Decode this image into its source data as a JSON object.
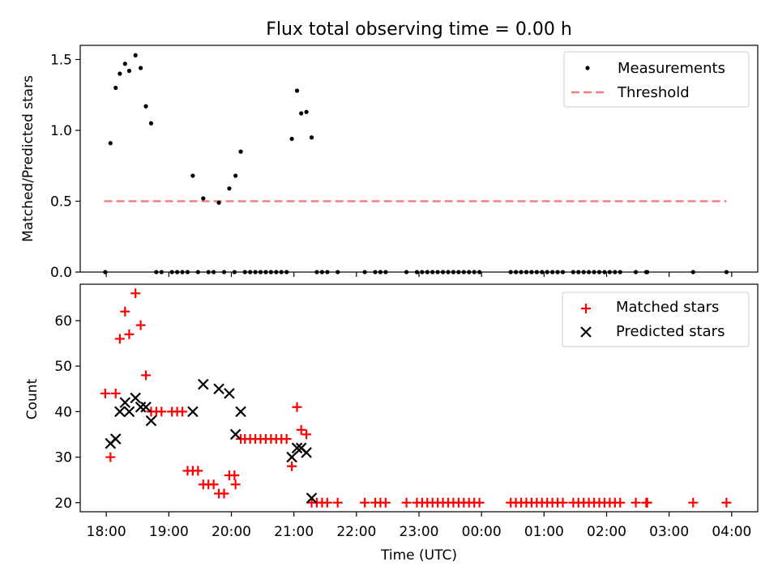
{
  "chart_data": [
    {
      "type": "scatter",
      "title": "Flux total observing time = 0.00 h",
      "xlabel": "",
      "ylabel": "Matched/Predicted stars",
      "x_unit": "time of day UTC (hours after midnight; values above 24 fall on the next day)",
      "xlim": [
        "17:35",
        "04:25"
      ],
      "ylim": [
        0,
        1.6
      ],
      "yticks": [
        "0.0",
        "0.5",
        "1.0",
        "1.5"
      ],
      "legend_position": "top-right",
      "legend": [
        "Measurements",
        "Threshold"
      ],
      "threshold": {
        "name": "Threshold",
        "y": 0.5,
        "x_range": [
          "17:58",
          "03:55"
        ],
        "color": "#f08080"
      },
      "series": [
        {
          "name": "Measurements",
          "color": "#000000",
          "points": [
            [
              "17:59",
              0.0
            ],
            [
              "18:04",
              0.91
            ],
            [
              "18:09",
              1.3
            ],
            [
              "18:13",
              1.4
            ],
            [
              "18:18",
              1.47
            ],
            [
              "18:22",
              1.42
            ],
            [
              "18:28",
              1.53
            ],
            [
              "18:33",
              1.44
            ],
            [
              "18:38",
              1.17
            ],
            [
              "18:43",
              1.05
            ],
            [
              "18:48",
              0.0
            ],
            [
              "18:53",
              0.0
            ],
            [
              "19:03",
              0.0
            ],
            [
              "19:08",
              0.0
            ],
            [
              "19:13",
              0.0
            ],
            [
              "19:18",
              0.0
            ],
            [
              "19:23",
              0.68
            ],
            [
              "19:28",
              0.0
            ],
            [
              "19:33",
              0.52
            ],
            [
              "19:38",
              0.0
            ],
            [
              "19:43",
              0.0
            ],
            [
              "19:48",
              0.49
            ],
            [
              "19:53",
              0.0
            ],
            [
              "19:58",
              0.59
            ],
            [
              "20:03",
              0.0
            ],
            [
              "20:04",
              0.68
            ],
            [
              "20:09",
              0.85
            ],
            [
              "20:13",
              0.0
            ],
            [
              "20:18",
              0.0
            ],
            [
              "20:23",
              0.0
            ],
            [
              "20:28",
              0.0
            ],
            [
              "20:33",
              0.0
            ],
            [
              "20:38",
              0.0
            ],
            [
              "20:43",
              0.0
            ],
            [
              "20:48",
              0.0
            ],
            [
              "20:53",
              0.0
            ],
            [
              "20:58",
              0.94
            ],
            [
              "21:03",
              1.28
            ],
            [
              "21:07",
              1.12
            ],
            [
              "21:12",
              1.13
            ],
            [
              "21:17",
              0.95
            ],
            [
              "21:22",
              0.0
            ],
            [
              "21:27",
              0.0
            ],
            [
              "21:32",
              0.0
            ],
            [
              "21:42",
              0.0
            ],
            [
              "22:08",
              0.0
            ],
            [
              "22:18",
              0.0
            ],
            [
              "22:23",
              0.0
            ],
            [
              "22:28",
              0.0
            ],
            [
              "22:48",
              0.0
            ],
            [
              "22:58",
              0.0
            ],
            [
              "23:03",
              0.0
            ],
            [
              "23:08",
              0.0
            ],
            [
              "23:13",
              0.0
            ],
            [
              "23:18",
              0.0
            ],
            [
              "23:23",
              0.0
            ],
            [
              "23:28",
              0.0
            ],
            [
              "23:33",
              0.0
            ],
            [
              "23:38",
              0.0
            ],
            [
              "23:43",
              0.0
            ],
            [
              "23:48",
              0.0
            ],
            [
              "23:53",
              0.0
            ],
            [
              "23:58",
              0.0
            ],
            [
              "24:28",
              0.0
            ],
            [
              "24:33",
              0.0
            ],
            [
              "24:38",
              0.0
            ],
            [
              "24:43",
              0.0
            ],
            [
              "24:48",
              0.0
            ],
            [
              "24:53",
              0.0
            ],
            [
              "24:58",
              0.0
            ],
            [
              "25:03",
              0.0
            ],
            [
              "25:08",
              0.0
            ],
            [
              "25:13",
              0.0
            ],
            [
              "25:18",
              0.0
            ],
            [
              "25:28",
              0.0
            ],
            [
              "25:33",
              0.0
            ],
            [
              "25:38",
              0.0
            ],
            [
              "25:43",
              0.0
            ],
            [
              "25:48",
              0.0
            ],
            [
              "25:53",
              0.0
            ],
            [
              "25:58",
              0.0
            ],
            [
              "26:03",
              0.0
            ],
            [
              "26:08",
              0.0
            ],
            [
              "26:13",
              0.0
            ],
            [
              "26:28",
              0.0
            ],
            [
              "26:38",
              0.0
            ],
            [
              "26:39",
              0.0
            ],
            [
              "27:23",
              0.0
            ],
            [
              "27:55",
              0.0
            ]
          ]
        }
      ]
    },
    {
      "type": "scatter",
      "title": "",
      "xlabel": "Time (UTC)",
      "ylabel": "Count",
      "x_unit": "time of day UTC (hours after midnight; values above 24 fall on the next day)",
      "xlim": [
        "17:35",
        "04:25"
      ],
      "ylim": [
        18,
        68
      ],
      "yticks": [
        "20",
        "30",
        "40",
        "50",
        "60"
      ],
      "xticks": [
        "18:00",
        "19:00",
        "20:00",
        "21:00",
        "22:00",
        "23:00",
        "00:00",
        "01:00",
        "02:00",
        "03:00",
        "04:00"
      ],
      "legend_position": "top-right",
      "legend": [
        "Matched stars",
        "Predicted stars"
      ],
      "series": [
        {
          "name": "Matched stars",
          "color": "#ff0000",
          "marker": "plus",
          "points": [
            [
              "17:59",
              44
            ],
            [
              "18:04",
              30
            ],
            [
              "18:09",
              44
            ],
            [
              "18:13",
              56
            ],
            [
              "18:18",
              62
            ],
            [
              "18:22",
              57
            ],
            [
              "18:28",
              66
            ],
            [
              "18:33",
              59
            ],
            [
              "18:38",
              48
            ],
            [
              "18:43",
              40
            ],
            [
              "18:48",
              40
            ],
            [
              "18:53",
              40
            ],
            [
              "19:03",
              40
            ],
            [
              "19:08",
              40
            ],
            [
              "19:13",
              40
            ],
            [
              "19:18",
              27
            ],
            [
              "19:23",
              27
            ],
            [
              "19:28",
              27
            ],
            [
              "19:33",
              24
            ],
            [
              "19:38",
              24
            ],
            [
              "19:43",
              24
            ],
            [
              "19:48",
              22
            ],
            [
              "19:53",
              22
            ],
            [
              "19:58",
              26
            ],
            [
              "20:03",
              26
            ],
            [
              "20:04",
              24
            ],
            [
              "20:09",
              34
            ],
            [
              "20:13",
              34
            ],
            [
              "20:18",
              34
            ],
            [
              "20:23",
              34
            ],
            [
              "20:28",
              34
            ],
            [
              "20:33",
              34
            ],
            [
              "20:38",
              34
            ],
            [
              "20:43",
              34
            ],
            [
              "20:48",
              34
            ],
            [
              "20:53",
              34
            ],
            [
              "20:58",
              28
            ],
            [
              "21:03",
              41
            ],
            [
              "21:07",
              36
            ],
            [
              "21:12",
              35
            ],
            [
              "21:17",
              20
            ],
            [
              "21:22",
              20
            ],
            [
              "21:27",
              20
            ],
            [
              "21:32",
              20
            ],
            [
              "21:42",
              20
            ],
            [
              "22:08",
              20
            ],
            [
              "22:18",
              20
            ],
            [
              "22:23",
              20
            ],
            [
              "22:28",
              20
            ],
            [
              "22:48",
              20
            ],
            [
              "22:58",
              20
            ],
            [
              "23:03",
              20
            ],
            [
              "23:08",
              20
            ],
            [
              "23:13",
              20
            ],
            [
              "23:18",
              20
            ],
            [
              "23:23",
              20
            ],
            [
              "23:28",
              20
            ],
            [
              "23:33",
              20
            ],
            [
              "23:38",
              20
            ],
            [
              "23:43",
              20
            ],
            [
              "23:48",
              20
            ],
            [
              "23:53",
              20
            ],
            [
              "23:58",
              20
            ],
            [
              "24:28",
              20
            ],
            [
              "24:33",
              20
            ],
            [
              "24:38",
              20
            ],
            [
              "24:43",
              20
            ],
            [
              "24:48",
              20
            ],
            [
              "24:53",
              20
            ],
            [
              "24:58",
              20
            ],
            [
              "25:03",
              20
            ],
            [
              "25:08",
              20
            ],
            [
              "25:13",
              20
            ],
            [
              "25:18",
              20
            ],
            [
              "25:28",
              20
            ],
            [
              "25:33",
              20
            ],
            [
              "25:38",
              20
            ],
            [
              "25:43",
              20
            ],
            [
              "25:48",
              20
            ],
            [
              "25:53",
              20
            ],
            [
              "25:58",
              20
            ],
            [
              "26:03",
              20
            ],
            [
              "26:08",
              20
            ],
            [
              "26:13",
              20
            ],
            [
              "26:28",
              20
            ],
            [
              "26:38",
              20
            ],
            [
              "26:39",
              20
            ],
            [
              "27:23",
              20
            ],
            [
              "27:55",
              20
            ]
          ]
        },
        {
          "name": "Predicted stars",
          "color": "#000000",
          "marker": "x",
          "points": [
            [
              "18:04",
              33
            ],
            [
              "18:09",
              34
            ],
            [
              "18:13",
              40
            ],
            [
              "18:18",
              42
            ],
            [
              "18:22",
              40
            ],
            [
              "18:28",
              43
            ],
            [
              "18:33",
              41
            ],
            [
              "18:38",
              41
            ],
            [
              "18:43",
              38
            ],
            [
              "19:23",
              40
            ],
            [
              "19:33",
              46
            ],
            [
              "19:48",
              45
            ],
            [
              "19:58",
              44
            ],
            [
              "20:04",
              35
            ],
            [
              "20:09",
              40
            ],
            [
              "20:58",
              30
            ],
            [
              "21:03",
              32
            ],
            [
              "21:07",
              32
            ],
            [
              "21:12",
              31
            ],
            [
              "21:17",
              21
            ]
          ]
        }
      ]
    }
  ]
}
